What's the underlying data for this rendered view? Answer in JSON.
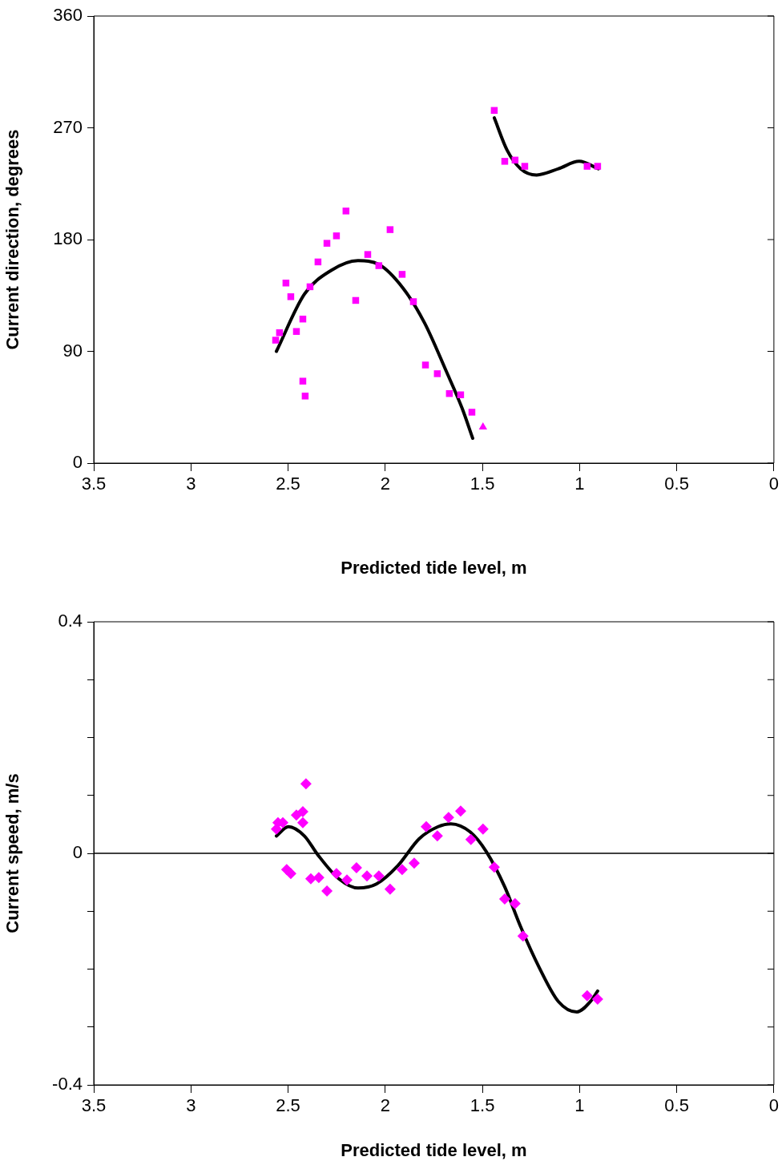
{
  "chart_data": [
    {
      "type": "scatter",
      "xlabel": "Predicted tide level, m",
      "ylabel": "Current direction, degrees",
      "xlim": [
        3.5,
        0
      ],
      "xticks": [
        3.5,
        3,
        2.5,
        2,
        1.5,
        1,
        0.5,
        0
      ],
      "ylim": [
        0,
        360
      ],
      "yticks": [
        0,
        90,
        180,
        270,
        360
      ],
      "grid": false,
      "legend": false,
      "series": [
        {
          "color": "#ff00ff",
          "marker": "square",
          "x": [
            2.564,
            2.544,
            2.511,
            2.486,
            2.457,
            2.424,
            2.424,
            2.412,
            2.387,
            2.346,
            2.3,
            2.251,
            2.202,
            2.152,
            2.09,
            2.033,
            1.975,
            1.913,
            1.855,
            1.793,
            1.732,
            1.67,
            1.612,
            1.554,
            1.439,
            1.385,
            1.332,
            1.282,
            0.961,
            0.907
          ],
          "values": [
            99,
            105,
            145,
            134,
            106,
            116,
            66,
            54,
            142,
            162,
            177,
            183,
            203,
            131,
            168,
            159,
            188,
            152,
            130,
            79,
            72,
            56,
            55,
            41,
            284,
            243,
            244,
            239,
            239,
            239
          ]
        },
        {
          "color": "#ff00ff",
          "marker": "triangle",
          "x": [
            1.497
          ],
          "values": [
            29
          ]
        },
        {
          "type": "line",
          "color": "#000000",
          "marker": "none",
          "x": [
            2.56,
            2.416,
            2.28,
            2.14,
            2.033,
            1.909,
            1.798,
            1.686,
            1.604,
            1.55
          ],
          "values": [
            90,
            136,
            155,
            163,
            160,
            141,
            113,
            74,
            44,
            20
          ]
        },
        {
          "type": "line",
          "color": "#000000",
          "marker": "none",
          "x": [
            1.439,
            1.373,
            1.303,
            1.221,
            1.109,
            1.002,
            0.903
          ],
          "values": [
            278,
            252,
            237,
            232,
            237,
            243,
            237
          ]
        }
      ]
    },
    {
      "type": "scatter",
      "xlabel": "Predicted tide level, m",
      "ylabel": "Current speed, m/s",
      "xlim": [
        3.5,
        0
      ],
      "xticks": [
        3.5,
        3,
        2.5,
        2,
        1.5,
        1,
        0.5,
        0
      ],
      "ylim": [
        -0.4,
        0.4
      ],
      "yticks": [
        -0.4,
        {
          "value": -0.3,
          "label": null
        },
        {
          "value": -0.2,
          "label": null
        },
        {
          "value": -0.1,
          "label": null
        },
        0,
        {
          "value": 0.1,
          "label": null
        },
        {
          "value": 0.2,
          "label": null
        },
        {
          "value": 0.3,
          "label": null
        },
        0.4
      ],
      "grid": false,
      "legend": false,
      "ref_lines": [
        {
          "axis": "y",
          "value": 0,
          "color": "#000000"
        }
      ],
      "series": [
        {
          "color": "#ff00ff",
          "marker": "diamond",
          "x": [
            2.56,
            2.552,
            2.527,
            2.507,
            2.486,
            2.457,
            2.424,
            2.424,
            2.408,
            2.383,
            2.342,
            2.3,
            2.251,
            2.197,
            2.148,
            2.094,
            2.033,
            1.975,
            1.913,
            1.851,
            1.789,
            1.732,
            1.674,
            1.612,
            1.559,
            1.497,
            1.439,
            1.385,
            1.332,
            1.291,
            0.961,
            0.907
          ],
          "values": [
            0.042,
            0.053,
            0.053,
            -0.028,
            -0.035,
            0.066,
            0.072,
            0.053,
            0.12,
            -0.044,
            -0.042,
            -0.065,
            -0.035,
            -0.046,
            -0.025,
            -0.039,
            -0.039,
            -0.062,
            -0.028,
            -0.017,
            0.046,
            0.03,
            0.062,
            0.073,
            0.024,
            0.042,
            -0.024,
            -0.079,
            -0.087,
            -0.143,
            -0.246,
            -0.252
          ]
        },
        {
          "type": "line",
          "color": "#000000",
          "marker": "none",
          "x": [
            2.56,
            2.498,
            2.416,
            2.346,
            2.239,
            2.14,
            2.045,
            1.934,
            1.826,
            1.728,
            1.662,
            1.563,
            1.48,
            1.385,
            1.303,
            1.208,
            1.109,
            1.014,
            0.944,
            0.907
          ],
          "values": [
            0.03,
            0.046,
            0.03,
            -0.003,
            -0.044,
            -0.06,
            -0.053,
            -0.021,
            0.025,
            0.046,
            0.051,
            0.037,
            0.003,
            -0.058,
            -0.127,
            -0.197,
            -0.256,
            -0.274,
            -0.256,
            -0.238
          ]
        }
      ]
    }
  ]
}
